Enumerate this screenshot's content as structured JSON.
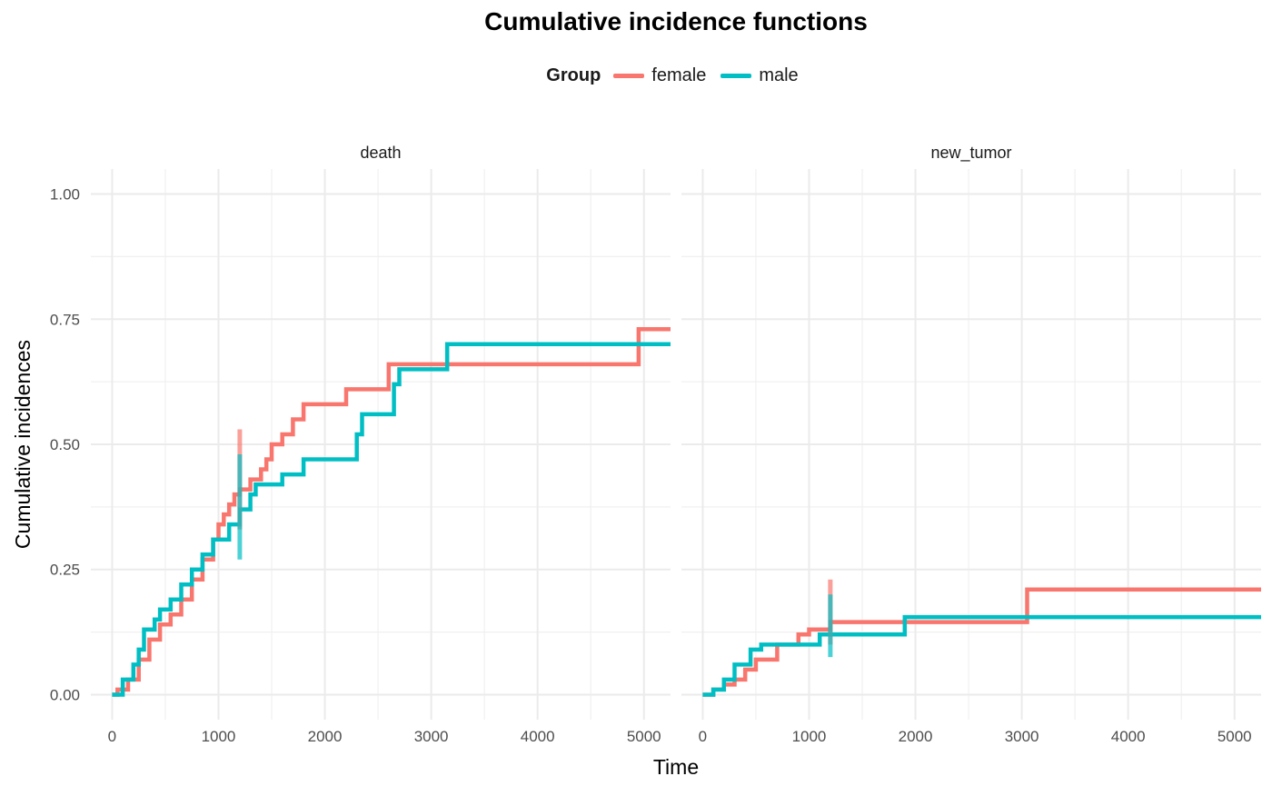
{
  "chart_data": {
    "type": "line",
    "title": "Cumulative incidence functions",
    "xlabel": "Time",
    "ylabel": "Cumulative incidences",
    "legend_title": "Group",
    "legend_position": "top",
    "colors": {
      "female": "#F8766D",
      "male": "#00BFC4"
    },
    "xlim": [
      -200,
      5250
    ],
    "ylim": [
      -0.05,
      1.05
    ],
    "xticks": [
      0,
      1000,
      2000,
      3000,
      4000,
      5000
    ],
    "yticks": [
      0.0,
      0.25,
      0.5,
      0.75,
      1.0
    ],
    "ytick_labels": [
      "0.00",
      "0.25",
      "0.50",
      "0.75",
      "1.00"
    ],
    "grid": true,
    "panels": [
      {
        "name": "death",
        "series": [
          {
            "name": "female",
            "x": [
              0,
              50,
              150,
              250,
              350,
              450,
              550,
              650,
              750,
              850,
              950,
              1000,
              1050,
              1100,
              1150,
              1200,
              1300,
              1400,
              1450,
              1500,
              1600,
              1700,
              1800,
              2200,
              2600,
              4950,
              5250
            ],
            "y": [
              0.0,
              0.01,
              0.03,
              0.07,
              0.11,
              0.14,
              0.16,
              0.19,
              0.23,
              0.27,
              0.31,
              0.34,
              0.36,
              0.38,
              0.4,
              0.41,
              0.43,
              0.45,
              0.47,
              0.5,
              0.52,
              0.55,
              0.58,
              0.61,
              0.66,
              0.73,
              0.73
            ]
          },
          {
            "name": "male",
            "x": [
              0,
              100,
              200,
              250,
              300,
              400,
              450,
              550,
              650,
              750,
              850,
              950,
              1100,
              1200,
              1300,
              1350,
              1600,
              1800,
              2300,
              2350,
              2650,
              2700,
              3150,
              5250
            ],
            "y": [
              0.0,
              0.03,
              0.06,
              0.09,
              0.13,
              0.15,
              0.17,
              0.19,
              0.22,
              0.25,
              0.28,
              0.31,
              0.34,
              0.37,
              0.4,
              0.42,
              0.44,
              0.47,
              0.52,
              0.56,
              0.62,
              0.65,
              0.7,
              0.7
            ]
          }
        ],
        "ci_bars": [
          {
            "name": "female",
            "x": 1200,
            "y_low": 0.33,
            "y_high": 0.53
          },
          {
            "name": "male",
            "x": 1200,
            "y_low": 0.27,
            "y_high": 0.48
          }
        ]
      },
      {
        "name": "new_tumor",
        "series": [
          {
            "name": "female",
            "x": [
              0,
              100,
              200,
              300,
              400,
              500,
              700,
              900,
              1000,
              1200,
              3050,
              5250
            ],
            "y": [
              0.0,
              0.01,
              0.02,
              0.03,
              0.05,
              0.07,
              0.1,
              0.12,
              0.13,
              0.145,
              0.21,
              0.21
            ]
          },
          {
            "name": "male",
            "x": [
              0,
              100,
              200,
              300,
              450,
              550,
              1100,
              1900,
              5250
            ],
            "y": [
              0.0,
              0.01,
              0.03,
              0.06,
              0.09,
              0.1,
              0.12,
              0.155,
              0.155
            ]
          }
        ],
        "ci_bars": [
          {
            "name": "female",
            "x": 1200,
            "y_low": 0.1,
            "y_high": 0.23
          },
          {
            "name": "male",
            "x": 1200,
            "y_low": 0.075,
            "y_high": 0.2
          }
        ]
      }
    ]
  }
}
